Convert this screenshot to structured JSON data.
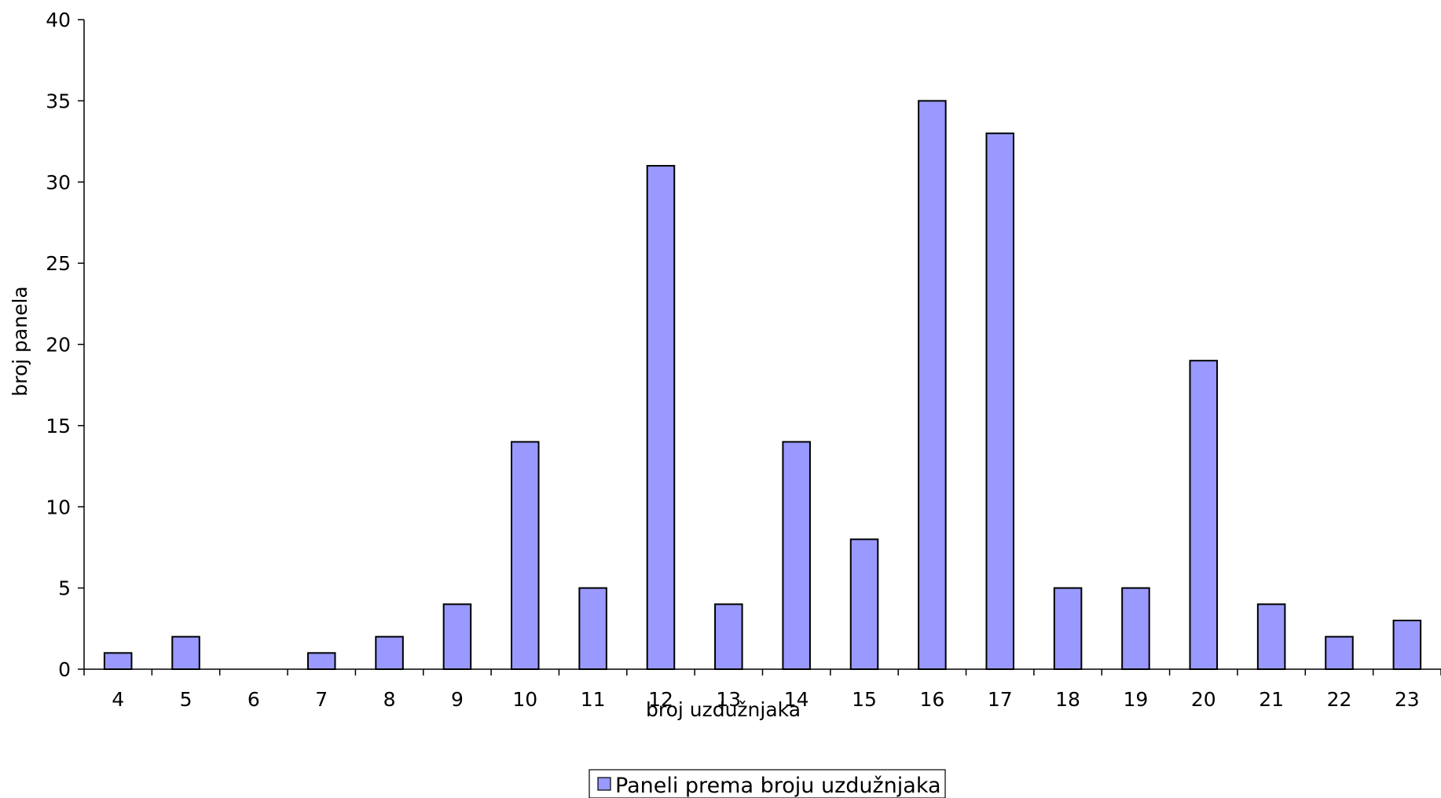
{
  "chart_data": {
    "type": "bar",
    "categories": [
      "4",
      "5",
      "6",
      "7",
      "8",
      "9",
      "10",
      "11",
      "12",
      "13",
      "14",
      "15",
      "16",
      "17",
      "18",
      "19",
      "20",
      "21",
      "22",
      "23"
    ],
    "series": [
      {
        "name": "Paneli prema broju uzdužnjaka",
        "values": [
          1,
          2,
          0,
          1,
          2,
          4,
          14,
          5,
          31,
          4,
          14,
          8,
          35,
          33,
          5,
          5,
          19,
          4,
          2,
          3
        ],
        "color": "#9999ff"
      }
    ],
    "xlabel": "broj uzdužnjaka",
    "ylabel": "broj panela",
    "ylim": [
      0,
      40
    ],
    "yticks": [
      "0",
      "5",
      "10",
      "15",
      "20",
      "25",
      "30",
      "35",
      "40"
    ],
    "grid": false,
    "legend": "bottom-center"
  }
}
